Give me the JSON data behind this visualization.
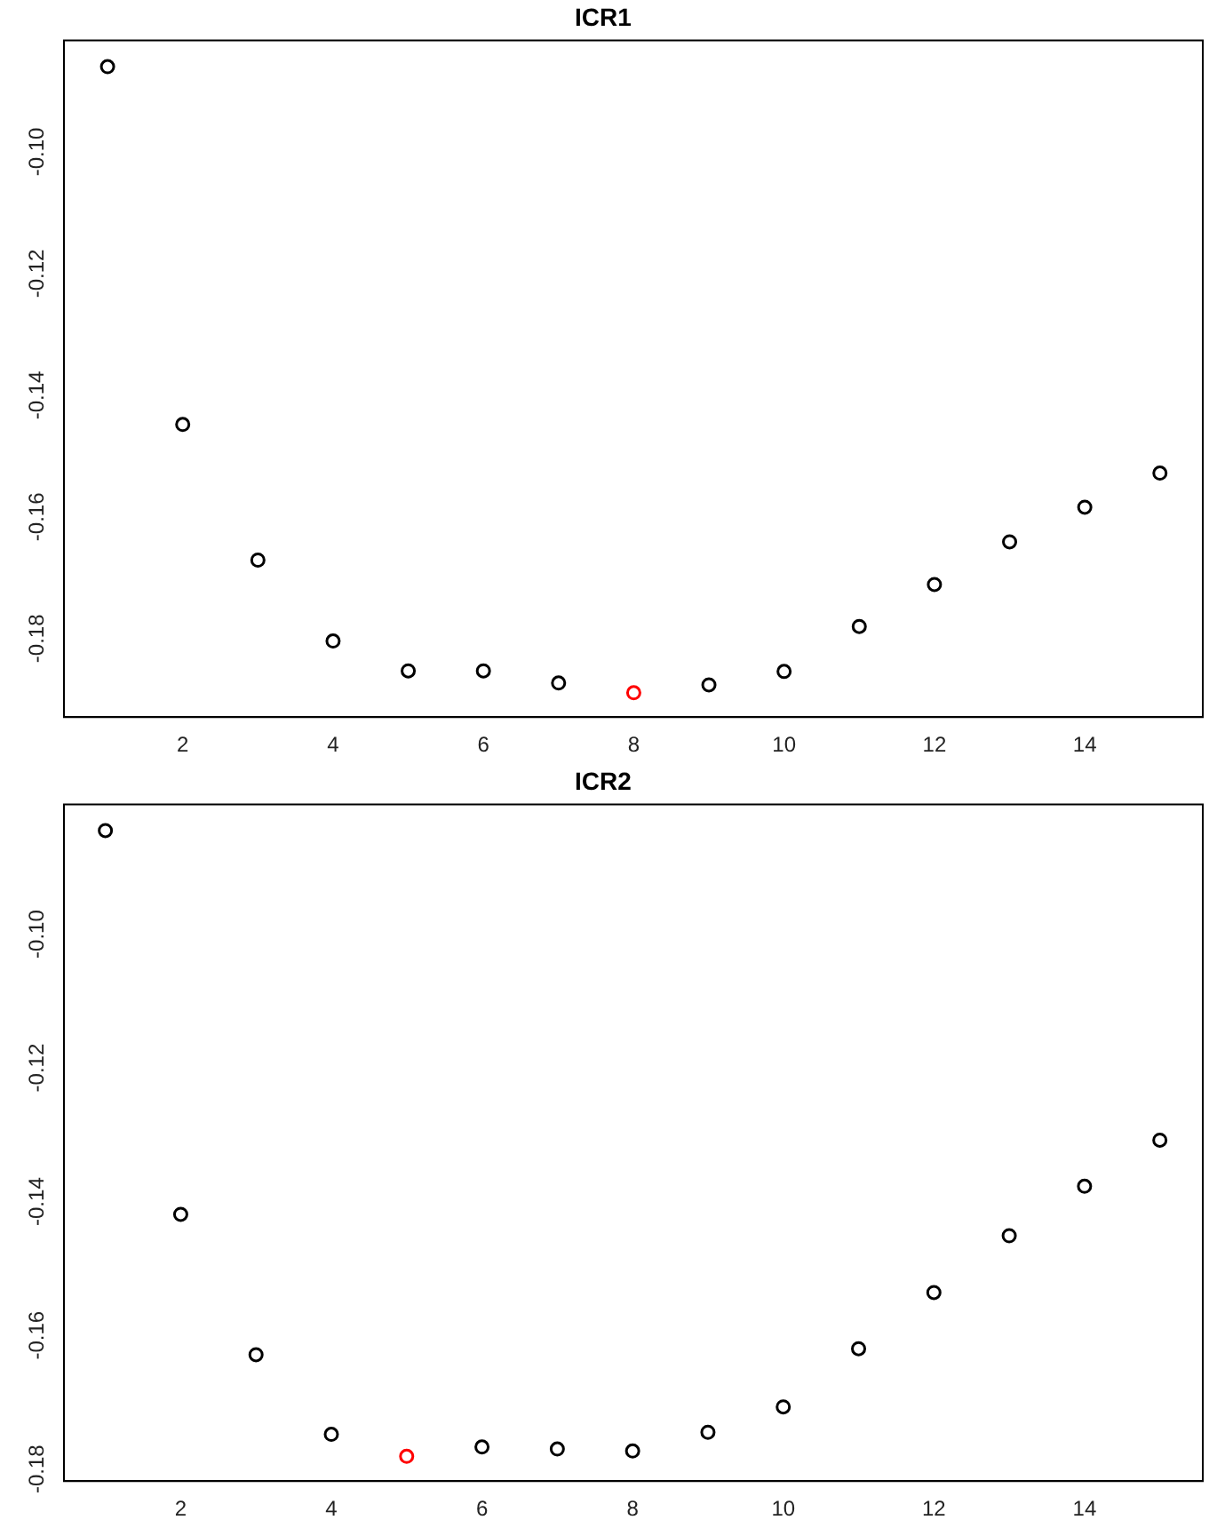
{
  "chart_data": [
    {
      "type": "scatter",
      "title": "ICR1",
      "x": [
        1,
        2,
        3,
        4,
        5,
        6,
        7,
        8,
        9,
        10,
        11,
        12,
        13,
        14,
        15
      ],
      "xlim": [
        0.42,
        15.57
      ],
      "xticks": [
        2,
        4,
        6,
        8,
        10,
        12,
        14
      ],
      "ylim": [
        -0.1929,
        -0.0817
      ],
      "yticks": [
        {
          "value": -0.1,
          "label": "-0.10"
        },
        -0.12,
        -0.14,
        -0.16,
        -0.18
      ],
      "marker": "circle",
      "series": [
        {
          "color": "#000000",
          "values": [
            -0.086,
            -0.1448,
            -0.1671,
            -0.1804,
            -0.1853,
            -0.1853,
            -0.1873,
            null,
            -0.1876,
            -0.1854,
            -0.178,
            -0.1711,
            -0.1641,
            -0.1584,
            -0.1528
          ]
        },
        {
          "color": "#ff0000",
          "x": [
            8
          ],
          "values": [
            -0.1889
          ]
        }
      ]
    },
    {
      "type": "scatter",
      "title": "ICR2",
      "x": [
        1,
        2,
        3,
        4,
        5,
        6,
        7,
        8,
        9,
        10,
        11,
        12,
        13,
        14,
        15
      ],
      "xlim": [
        0.45,
        15.57
      ],
      "xticks": [
        2,
        4,
        6,
        8,
        10,
        12,
        14
      ],
      "ylim": [
        -0.1818,
        -0.0806
      ],
      "yticks": [
        {
          "value": -0.1,
          "label": "-0.10"
        },
        -0.12,
        -0.14,
        -0.16,
        -0.18
      ],
      "marker": "circle",
      "series": [
        {
          "color": "#000000",
          "values": [
            -0.0845,
            -0.1419,
            -0.1629,
            -0.1748,
            null,
            -0.1767,
            -0.177,
            -0.1773,
            -0.1745,
            -0.1707,
            -0.162,
            -0.1536,
            -0.1451,
            -0.1377,
            -0.1308
          ]
        },
        {
          "color": "#ff0000",
          "x": [
            5
          ],
          "values": [
            -0.1781
          ]
        }
      ]
    }
  ]
}
